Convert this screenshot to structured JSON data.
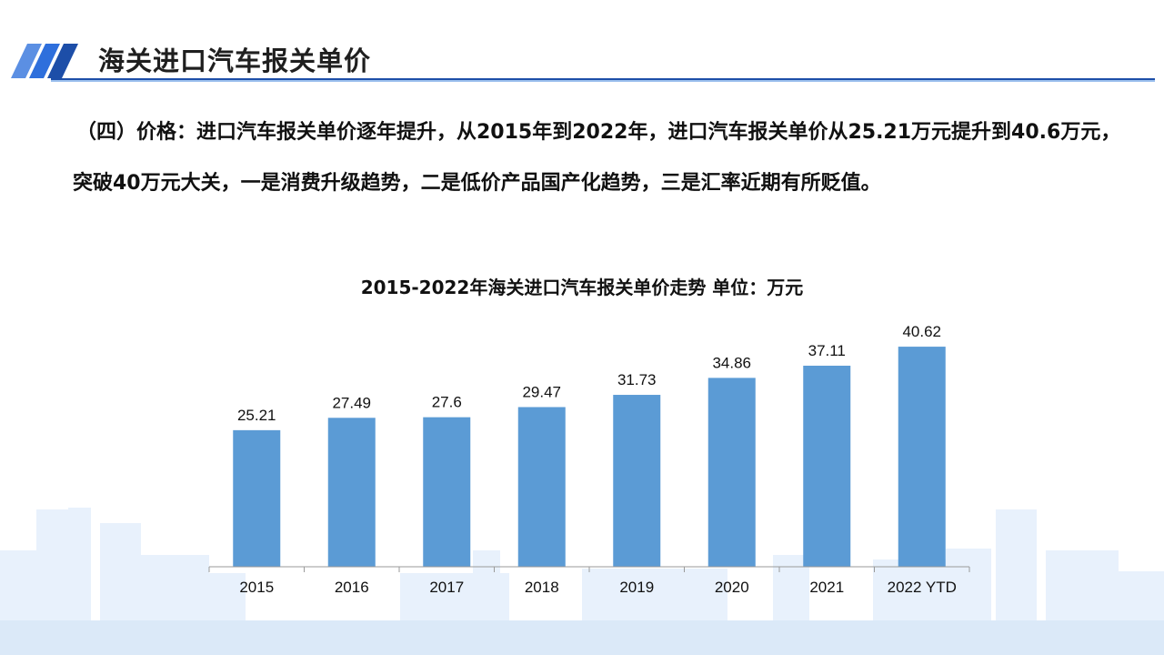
{
  "header": {
    "title": "海关进口汽车报关单价"
  },
  "intro_text": "（四）价格：进口汽车报关单价逐年提升，从2015年到2022年，进口汽车报关单价从25.21万元提升到40.6万元，突破40万元大关，一是消费升级趋势，二是低价产品国产化趋势，三是汇率近期有所贬值。",
  "colors": {
    "accent": "#1d4ea8",
    "bar": "#5b9bd5",
    "skyline": "#e6f0fb"
  },
  "chart_data": {
    "type": "bar",
    "title": "2015-2022年海关进口汽车报关单价走势 单位：万元",
    "categories": [
      "2015",
      "2016",
      "2017",
      "2018",
      "2019",
      "2020",
      "2021",
      "2022 YTD"
    ],
    "values": [
      25.21,
      27.49,
      27.6,
      29.47,
      31.73,
      34.86,
      37.11,
      40.62
    ],
    "ylim": [
      0,
      45
    ],
    "grid": false,
    "legend": "none",
    "data_labels": true
  }
}
